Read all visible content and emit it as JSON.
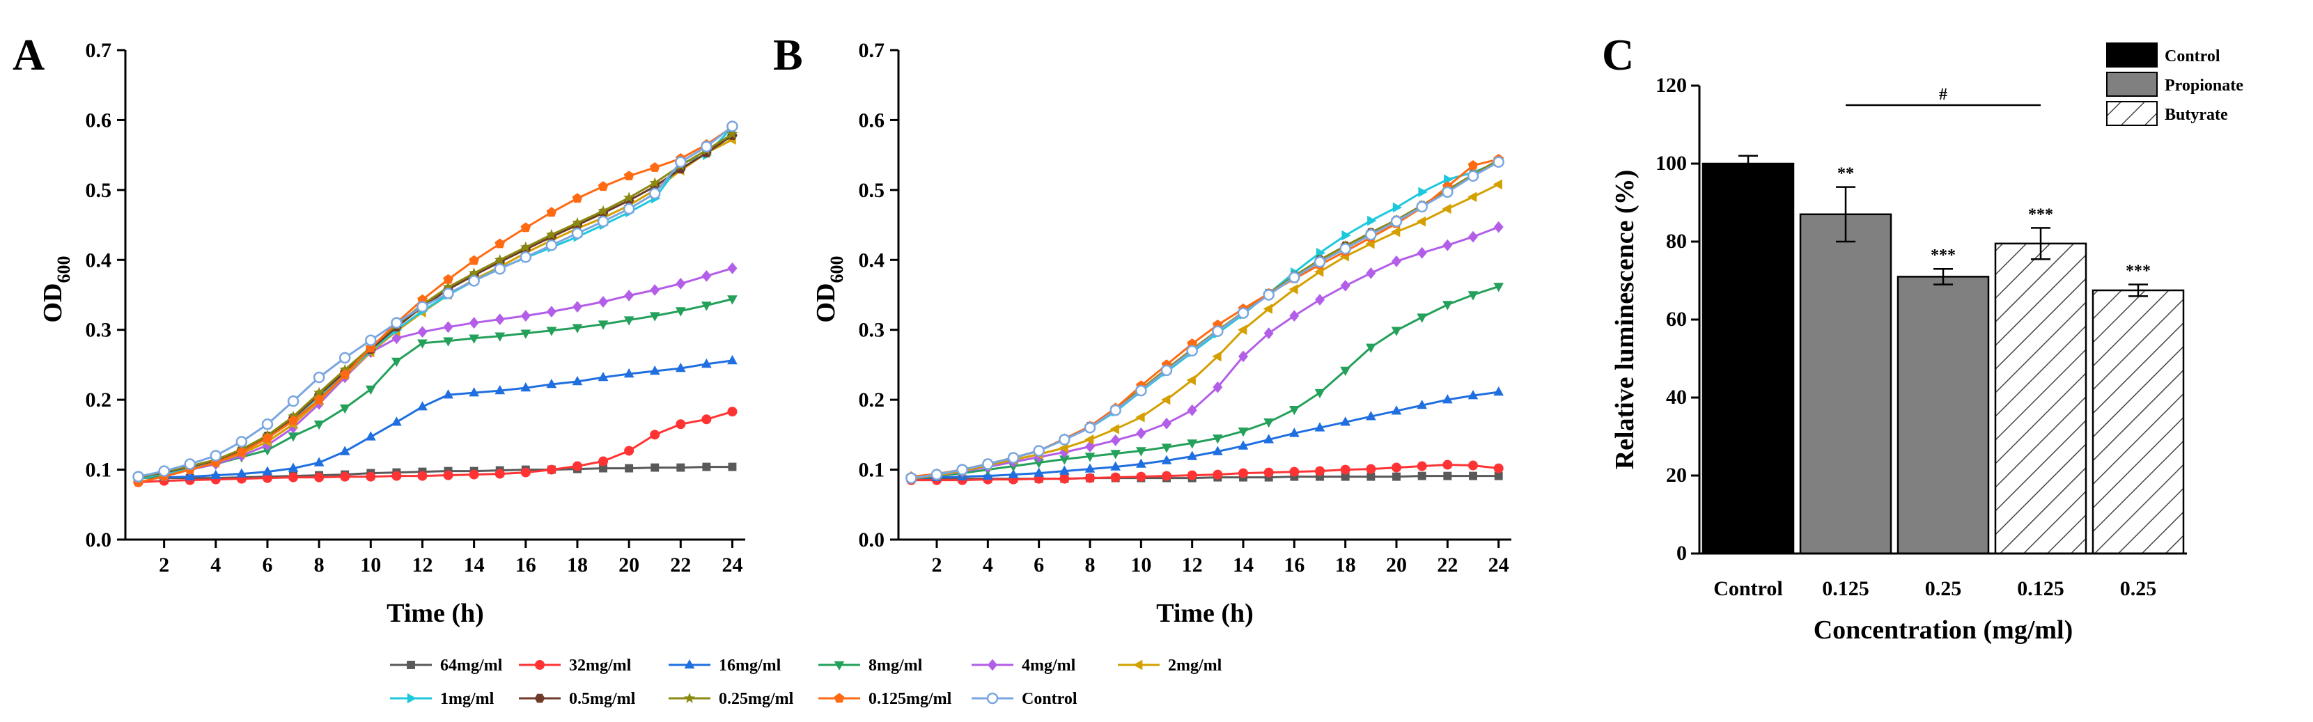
{
  "panels": {
    "a": "A",
    "b": "B",
    "c": "C"
  },
  "line_axes": {
    "ylabel": "OD",
    "ylabel_sub": "600",
    "xlabel": "Time (h)",
    "xticks": [
      "2",
      "4",
      "6",
      "8",
      "10",
      "12",
      "14",
      "16",
      "18",
      "20",
      "22",
      "24"
    ],
    "yticks": [
      "0.0",
      "0.1",
      "0.2",
      "0.3",
      "0.4",
      "0.5",
      "0.6",
      "0.7"
    ]
  },
  "bar_axes": {
    "ylabel": "Relative luminescence (%)",
    "xlabel": "Concentration (mg/ml)",
    "yticks": [
      "0",
      "20",
      "40",
      "60",
      "80",
      "100",
      "120"
    ]
  },
  "bar_legend": [
    "Control",
    "Propionate",
    "Butyrate"
  ],
  "significance": {
    "labels": [
      "",
      "**",
      "***",
      "***",
      "***"
    ],
    "bracket_label": "#"
  },
  "line_legend": [
    {
      "name": "64mg/ml",
      "color": "#595959",
      "marker": "square"
    },
    {
      "name": "32mg/ml",
      "color": "#ff3333",
      "marker": "circle"
    },
    {
      "name": "16mg/ml",
      "color": "#1f6fe0",
      "marker": "triangle-up"
    },
    {
      "name": "8mg/ml",
      "color": "#23a05a",
      "marker": "triangle-down"
    },
    {
      "name": "4mg/ml",
      "color": "#b35ee8",
      "marker": "diamond"
    },
    {
      "name": "2mg/ml",
      "color": "#d4a000",
      "marker": "triangle-left"
    },
    {
      "name": "1mg/ml",
      "color": "#1ec8dc",
      "marker": "triangle-right"
    },
    {
      "name": "0.5mg/ml",
      "color": "#6e3a2a",
      "marker": "hexagon"
    },
    {
      "name": "0.25mg/ml",
      "color": "#8a8a10",
      "marker": "star"
    },
    {
      "name": "0.125mg/ml",
      "color": "#ff6a13",
      "marker": "pentagon"
    },
    {
      "name": "Control",
      "color": "#7aa6e0",
      "marker": "circle-open"
    }
  ],
  "chart_data": [
    {
      "id": "A",
      "type": "line",
      "xlabel": "Time (h)",
      "ylabel": "OD600",
      "xlim": [
        0.5,
        24.5
      ],
      "ylim": [
        0,
        0.7
      ],
      "x": [
        1,
        2,
        3,
        4,
        5,
        6,
        7,
        8,
        9,
        10,
        11,
        12,
        13,
        14,
        15,
        16,
        17,
        18,
        19,
        20,
        21,
        22,
        23,
        24
      ],
      "series": [
        {
          "name": "64mg/ml",
          "values": [
            0.09,
            0.088,
            0.088,
            0.088,
            0.089,
            0.09,
            0.091,
            0.092,
            0.093,
            0.095,
            0.096,
            0.097,
            0.098,
            0.098,
            0.099,
            0.1,
            0.1,
            0.101,
            0.102,
            0.102,
            0.103,
            0.103,
            0.104,
            0.104
          ]
        },
        {
          "name": "32mg/ml",
          "values": [
            0.082,
            0.084,
            0.085,
            0.086,
            0.087,
            0.088,
            0.089,
            0.089,
            0.09,
            0.09,
            0.091,
            0.091,
            0.092,
            0.093,
            0.094,
            0.096,
            0.1,
            0.105,
            0.112,
            0.127,
            0.15,
            0.165,
            0.172,
            0.183
          ]
        },
        {
          "name": "16mg/ml",
          "values": [
            0.088,
            0.089,
            0.09,
            0.092,
            0.094,
            0.097,
            0.102,
            0.11,
            0.126,
            0.147,
            0.168,
            0.19,
            0.207,
            0.21,
            0.213,
            0.217,
            0.222,
            0.226,
            0.232,
            0.237,
            0.241,
            0.245,
            0.251,
            0.256
          ]
        },
        {
          "name": "8mg/ml",
          "values": [
            0.087,
            0.092,
            0.1,
            0.108,
            0.118,
            0.128,
            0.148,
            0.165,
            0.188,
            0.215,
            0.255,
            0.281,
            0.284,
            0.288,
            0.291,
            0.295,
            0.299,
            0.303,
            0.308,
            0.314,
            0.32,
            0.327,
            0.335,
            0.344
          ]
        },
        {
          "name": "4mg/ml",
          "values": [
            0.088,
            0.094,
            0.1,
            0.108,
            0.12,
            0.135,
            0.16,
            0.194,
            0.232,
            0.268,
            0.288,
            0.297,
            0.304,
            0.31,
            0.315,
            0.32,
            0.326,
            0.333,
            0.34,
            0.349,
            0.357,
            0.366,
            0.377,
            0.388
          ]
        },
        {
          "name": "2mg/ml",
          "values": [
            0.088,
            0.094,
            0.102,
            0.11,
            0.123,
            0.14,
            0.165,
            0.198,
            0.235,
            0.268,
            0.298,
            0.325,
            0.35,
            0.372,
            0.39,
            0.41,
            0.428,
            0.445,
            0.46,
            0.478,
            0.5,
            0.528,
            0.553,
            0.572
          ]
        },
        {
          "name": "1mg/ml",
          "values": [
            0.088,
            0.094,
            0.103,
            0.112,
            0.127,
            0.147,
            0.173,
            0.205,
            0.237,
            0.27,
            0.3,
            0.327,
            0.35,
            0.37,
            0.388,
            0.403,
            0.418,
            0.433,
            0.45,
            0.468,
            0.488,
            0.538,
            0.55,
            0.59
          ]
        },
        {
          "name": "0.5mg/ml",
          "values": [
            0.089,
            0.096,
            0.104,
            0.113,
            0.128,
            0.148,
            0.174,
            0.207,
            0.24,
            0.272,
            0.304,
            0.333,
            0.358,
            0.378,
            0.397,
            0.415,
            0.433,
            0.45,
            0.467,
            0.485,
            0.505,
            0.53,
            0.553,
            0.578
          ]
        },
        {
          "name": "0.25mg/ml",
          "values": [
            0.089,
            0.097,
            0.105,
            0.114,
            0.129,
            0.149,
            0.176,
            0.21,
            0.243,
            0.275,
            0.307,
            0.336,
            0.361,
            0.381,
            0.4,
            0.418,
            0.436,
            0.453,
            0.47,
            0.489,
            0.51,
            0.535,
            0.557,
            0.58
          ]
        },
        {
          "name": "0.125mg/ml",
          "values": [
            0.082,
            0.09,
            0.1,
            0.11,
            0.125,
            0.145,
            0.17,
            0.2,
            0.236,
            0.274,
            0.31,
            0.343,
            0.372,
            0.399,
            0.423,
            0.446,
            0.468,
            0.488,
            0.505,
            0.52,
            0.532,
            0.545,
            0.565,
            0.59
          ]
        },
        {
          "name": "Control",
          "values": [
            0.09,
            0.098,
            0.108,
            0.12,
            0.14,
            0.165,
            0.198,
            0.232,
            0.26,
            0.285,
            0.31,
            0.333,
            0.352,
            0.37,
            0.387,
            0.404,
            0.421,
            0.438,
            0.455,
            0.473,
            0.495,
            0.54,
            0.562,
            0.591
          ]
        }
      ]
    },
    {
      "id": "B",
      "type": "line",
      "xlabel": "Time (h)",
      "ylabel": "OD600",
      "xlim": [
        0.5,
        24.5
      ],
      "ylim": [
        0,
        0.7
      ],
      "x": [
        1,
        2,
        3,
        4,
        5,
        6,
        7,
        8,
        9,
        10,
        11,
        12,
        13,
        14,
        15,
        16,
        17,
        18,
        19,
        20,
        21,
        22,
        23,
        24
      ],
      "series": [
        {
          "name": "64mg/ml",
          "values": [
            0.087,
            0.087,
            0.087,
            0.087,
            0.087,
            0.087,
            0.087,
            0.088,
            0.088,
            0.088,
            0.088,
            0.088,
            0.089,
            0.089,
            0.089,
            0.09,
            0.09,
            0.09,
            0.09,
            0.09,
            0.091,
            0.091,
            0.091,
            0.091
          ]
        },
        {
          "name": "32mg/ml",
          "values": [
            0.085,
            0.085,
            0.085,
            0.086,
            0.086,
            0.087,
            0.087,
            0.088,
            0.089,
            0.09,
            0.091,
            0.092,
            0.093,
            0.095,
            0.096,
            0.097,
            0.098,
            0.1,
            0.101,
            0.103,
            0.105,
            0.107,
            0.106,
            0.102
          ]
        },
        {
          "name": "16mg/ml",
          "values": [
            0.088,
            0.089,
            0.09,
            0.091,
            0.093,
            0.095,
            0.098,
            0.101,
            0.104,
            0.108,
            0.113,
            0.119,
            0.126,
            0.134,
            0.143,
            0.152,
            0.16,
            0.168,
            0.176,
            0.184,
            0.192,
            0.2,
            0.206,
            0.211
          ]
        },
        {
          "name": "8mg/ml",
          "values": [
            0.088,
            0.091,
            0.095,
            0.1,
            0.105,
            0.11,
            0.115,
            0.119,
            0.123,
            0.127,
            0.132,
            0.138,
            0.145,
            0.155,
            0.168,
            0.186,
            0.21,
            0.242,
            0.275,
            0.299,
            0.318,
            0.336,
            0.35,
            0.362
          ]
        },
        {
          "name": "4mg/ml",
          "values": [
            0.088,
            0.092,
            0.097,
            0.104,
            0.111,
            0.118,
            0.125,
            0.133,
            0.142,
            0.152,
            0.166,
            0.185,
            0.218,
            0.262,
            0.295,
            0.32,
            0.343,
            0.363,
            0.381,
            0.398,
            0.41,
            0.421,
            0.433,
            0.447
          ]
        },
        {
          "name": "2mg/ml",
          "values": [
            0.087,
            0.092,
            0.098,
            0.106,
            0.114,
            0.122,
            0.131,
            0.143,
            0.158,
            0.175,
            0.2,
            0.228,
            0.262,
            0.3,
            0.33,
            0.358,
            0.383,
            0.405,
            0.423,
            0.44,
            0.455,
            0.473,
            0.49,
            0.508
          ]
        },
        {
          "name": "1mg/ml",
          "values": [
            0.088,
            0.093,
            0.1,
            0.108,
            0.117,
            0.127,
            0.143,
            0.16,
            0.183,
            0.212,
            0.24,
            0.268,
            0.295,
            0.322,
            0.352,
            0.382,
            0.41,
            0.435,
            0.456,
            0.475,
            0.497,
            0.515,
            0.525,
            0.54
          ]
        },
        {
          "name": "0.5mg/ml",
          "values": [
            0.088,
            0.093,
            0.1,
            0.108,
            0.117,
            0.127,
            0.144,
            0.162,
            0.186,
            0.215,
            0.244,
            0.272,
            0.299,
            0.325,
            0.352,
            0.377,
            0.4,
            0.42,
            0.439,
            0.457,
            0.478,
            0.5,
            0.522,
            0.543
          ]
        },
        {
          "name": "0.25mg/ml",
          "values": [
            0.088,
            0.093,
            0.1,
            0.108,
            0.117,
            0.127,
            0.144,
            0.162,
            0.186,
            0.215,
            0.244,
            0.272,
            0.299,
            0.325,
            0.352,
            0.377,
            0.4,
            0.42,
            0.439,
            0.457,
            0.478,
            0.5,
            0.522,
            0.543
          ]
        },
        {
          "name": "0.125mg/ml",
          "values": [
            0.09,
            0.094,
            0.1,
            0.108,
            0.117,
            0.127,
            0.144,
            0.162,
            0.188,
            0.22,
            0.25,
            0.28,
            0.307,
            0.33,
            0.352,
            0.373,
            0.393,
            0.412,
            0.432,
            0.452,
            0.475,
            0.505,
            0.535,
            0.544
          ]
        },
        {
          "name": "Control",
          "values": [
            0.088,
            0.093,
            0.1,
            0.108,
            0.117,
            0.127,
            0.143,
            0.16,
            0.185,
            0.213,
            0.242,
            0.27,
            0.298,
            0.324,
            0.35,
            0.375,
            0.397,
            0.416,
            0.436,
            0.455,
            0.476,
            0.497,
            0.52,
            0.54
          ]
        }
      ]
    },
    {
      "id": "C",
      "type": "bar",
      "xlabel": "Concentration (mg/ml)",
      "ylabel": "Relative luminescence (%)",
      "ylim": [
        0,
        120
      ],
      "categories": [
        "Control",
        "0.125",
        "0.25",
        "0.125",
        "0.25"
      ],
      "groups": [
        "Control",
        "Propionate",
        "Propionate",
        "Butyrate",
        "Butyrate"
      ],
      "values": [
        100,
        87,
        71,
        79.5,
        67.5
      ],
      "errors": [
        2,
        7,
        2,
        4,
        1.5
      ]
    }
  ]
}
